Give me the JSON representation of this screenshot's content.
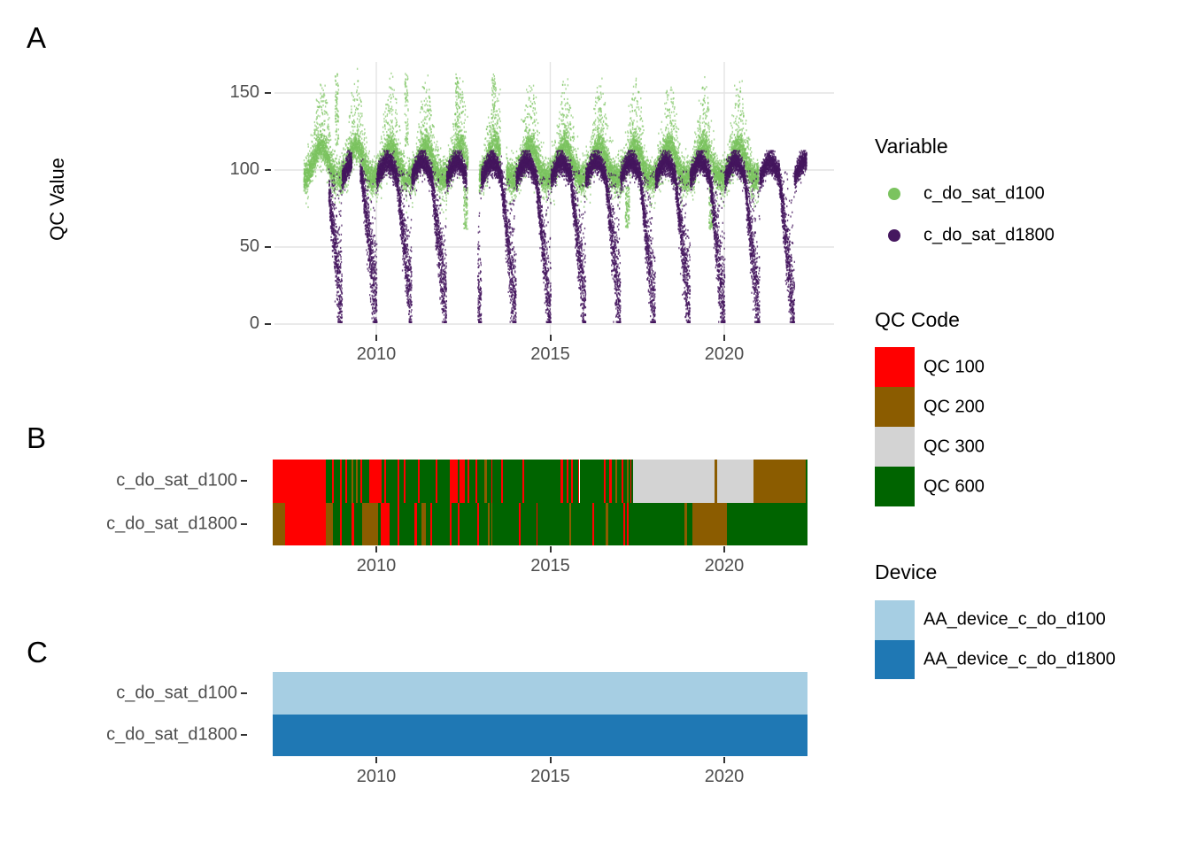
{
  "figure": {
    "background": "#FFFFFF",
    "panels": {
      "A": {
        "label": "A",
        "y_axis_title": "QC Value",
        "x_tick_labels": [
          "2010",
          "2015",
          "2020"
        ],
        "y_tick_labels": [
          "0",
          "50",
          "100",
          "150"
        ]
      },
      "B": {
        "label": "B",
        "row_labels": [
          "c_do_sat_d100",
          "c_do_sat_d1800"
        ],
        "x_tick_labels": [
          "2010",
          "2015",
          "2020"
        ]
      },
      "C": {
        "label": "C",
        "row_labels": [
          "c_do_sat_d100",
          "c_do_sat_d1800"
        ],
        "x_tick_labels": [
          "2010",
          "2015",
          "2020"
        ]
      }
    },
    "legends": {
      "variable": {
        "title": "Variable",
        "items": [
          {
            "label": "c_do_sat_d100",
            "color": "#7BC35F"
          },
          {
            "label": "c_do_sat_d1800",
            "color": "#45175F"
          }
        ]
      },
      "qc_code": {
        "title": "QC Code",
        "items": [
          {
            "label": "QC 100",
            "color": "#FF0000"
          },
          {
            "label": "QC 200",
            "color": "#8B5C00"
          },
          {
            "label": "QC 300",
            "color": "#D3D3D3"
          },
          {
            "label": "QC 600",
            "color": "#006400"
          }
        ]
      },
      "device": {
        "title": "Device",
        "items": [
          {
            "label": "AA_device_c_do_d100",
            "color": "#A6CEE3"
          },
          {
            "label": "AA_device_c_do_d1800",
            "color": "#1F78B4"
          }
        ]
      }
    },
    "style": {
      "gridline_color": "#E3E3E3",
      "axis_text_color": "#4d4d4d",
      "tick_mark_color": "#333333"
    }
  },
  "chart_data": [
    {
      "id": "panelA",
      "type": "scatter",
      "title": "",
      "xlabel": "",
      "ylabel": "QC Value",
      "x_ticks": [
        2010,
        2015,
        2020
      ],
      "y_ticks": [
        0,
        50,
        100,
        150
      ],
      "x_domain": [
        2007.07,
        2023.16
      ],
      "y_domain": [
        -6.9,
        170.1
      ],
      "grid": true,
      "legend_title": "Variable",
      "series": [
        {
          "name": "c_do_sat_d100",
          "color": "#7BC35F",
          "t_range": [
            2007.9,
            2020.97
          ],
          "gaps": [
            [
              2012.62,
              2012.94
            ],
            [
              2013.55,
              2013.72
            ]
          ],
          "baseline": 99,
          "season_peak_phase": 0.42,
          "season_peak_height": 14,
          "season_width": 0.17,
          "noise_sd": 4.5,
          "upper_tail_prob": 0.16,
          "upper_tail_max": 30,
          "lower_tail_prob": 0.05,
          "lower_tail_max": 16,
          "spike_years": [
            2008.85,
            2010.85,
            2012.3,
            2013.35
          ],
          "spike_top": 163,
          "low_dip_years": [
            2012.55,
            2017.2,
            2019.6
          ],
          "low_dip_min": 62,
          "clamp": [
            58,
            167
          ]
        },
        {
          "name": "c_do_sat_d1800",
          "color": "#45175F",
          "t_range": [
            2008.62,
            2022.35
          ],
          "gaps": [
            [
              2009.28,
              2009.52
            ],
            [
              2012.58,
              2012.9
            ]
          ],
          "base": 97,
          "base_amp": 9,
          "dip_start_phase": 0.55,
          "dip_end_phase": 0.97,
          "dip_depth_min": 84,
          "dip_depth_max": 97,
          "noise_sd": 3.5,
          "dip_noise_sd": 13,
          "clamp": [
            2,
            113
          ]
        }
      ]
    },
    {
      "id": "panelB",
      "type": "heatmap",
      "title": "QC Code timeline",
      "x_ticks": [
        2010,
        2015,
        2020
      ],
      "x_range": [
        2007.02,
        2022.39
      ],
      "rows": [
        "c_do_sat_d100",
        "c_do_sat_d1800"
      ],
      "qc_colors": {
        "100": "#FF0000",
        "200": "#8B5C00",
        "300": "#D3D3D3",
        "600": "#006400"
      },
      "segments": {
        "c_do_sat_d100": [
          [
            2007.02,
            2008.55,
            100
          ],
          [
            2008.55,
            2008.72,
            600
          ],
          [
            2008.72,
            2008.78,
            100
          ],
          [
            2008.78,
            2008.95,
            600
          ],
          [
            2008.95,
            2009.0,
            100
          ],
          [
            2009.0,
            2009.12,
            600
          ],
          [
            2009.12,
            2009.16,
            100
          ],
          [
            2009.16,
            2009.28,
            600
          ],
          [
            2009.28,
            2009.33,
            200
          ],
          [
            2009.33,
            2009.42,
            600
          ],
          [
            2009.42,
            2009.46,
            200
          ],
          [
            2009.46,
            2009.55,
            600
          ],
          [
            2009.55,
            2009.6,
            100
          ],
          [
            2009.6,
            2009.8,
            600
          ],
          [
            2009.8,
            2010.15,
            100
          ],
          [
            2010.15,
            2010.22,
            600
          ],
          [
            2010.22,
            2010.28,
            100
          ],
          [
            2010.28,
            2010.6,
            600
          ],
          [
            2010.6,
            2010.65,
            100
          ],
          [
            2010.65,
            2010.8,
            600
          ],
          [
            2010.8,
            2010.84,
            100
          ],
          [
            2010.84,
            2011.2,
            600
          ],
          [
            2011.2,
            2011.25,
            100
          ],
          [
            2011.25,
            2011.7,
            600
          ],
          [
            2011.7,
            2011.76,
            100
          ],
          [
            2011.76,
            2012.1,
            600
          ],
          [
            2012.1,
            2012.35,
            100
          ],
          [
            2012.35,
            2012.4,
            600
          ],
          [
            2012.4,
            2012.55,
            100
          ],
          [
            2012.55,
            2012.62,
            600
          ],
          [
            2012.62,
            2012.66,
            100
          ],
          [
            2012.66,
            2012.85,
            600
          ],
          [
            2012.85,
            2012.9,
            100
          ],
          [
            2012.9,
            2013.1,
            600
          ],
          [
            2013.1,
            2013.18,
            200
          ],
          [
            2013.18,
            2013.3,
            600
          ],
          [
            2013.3,
            2013.34,
            100
          ],
          [
            2013.34,
            2013.6,
            600
          ],
          [
            2013.6,
            2013.65,
            100
          ],
          [
            2013.65,
            2014.2,
            600
          ],
          [
            2014.2,
            2014.24,
            100
          ],
          [
            2014.24,
            2015.3,
            600
          ],
          [
            2015.3,
            2015.38,
            100
          ],
          [
            2015.38,
            2015.48,
            600
          ],
          [
            2015.48,
            2015.52,
            100
          ],
          [
            2015.52,
            2015.6,
            600
          ],
          [
            2015.6,
            2015.66,
            100
          ],
          [
            2015.66,
            2015.8,
            600
          ],
          [
            2015.8,
            2015.84,
            100
          ],
          [
            2015.84,
            2016.55,
            600
          ],
          [
            2016.55,
            2016.6,
            100
          ],
          [
            2016.6,
            2016.7,
            600
          ],
          [
            2016.7,
            2016.76,
            100
          ],
          [
            2016.76,
            2016.86,
            600
          ],
          [
            2016.86,
            2016.92,
            200
          ],
          [
            2016.92,
            2017.05,
            600
          ],
          [
            2017.05,
            2017.1,
            100
          ],
          [
            2017.1,
            2017.2,
            600
          ],
          [
            2017.2,
            2017.25,
            200
          ],
          [
            2017.25,
            2017.3,
            600
          ],
          [
            2017.3,
            2017.34,
            100
          ],
          [
            2017.34,
            2017.38,
            600
          ],
          [
            2017.38,
            2019.72,
            300
          ],
          [
            2019.72,
            2019.8,
            200
          ],
          [
            2019.8,
            2020.84,
            300
          ],
          [
            2020.84,
            2022.35,
            200
          ],
          [
            2022.35,
            2022.39,
            600
          ]
        ],
        "c_do_sat_d1800": [
          [
            2007.02,
            2007.38,
            200
          ],
          [
            2007.38,
            2008.55,
            100
          ],
          [
            2008.55,
            2008.75,
            200
          ],
          [
            2008.75,
            2008.95,
            600
          ],
          [
            2008.95,
            2009.0,
            100
          ],
          [
            2009.0,
            2009.3,
            600
          ],
          [
            2009.3,
            2009.36,
            100
          ],
          [
            2009.36,
            2009.6,
            600
          ],
          [
            2009.6,
            2010.05,
            200
          ],
          [
            2010.05,
            2010.12,
            600
          ],
          [
            2010.12,
            2010.38,
            100
          ],
          [
            2010.38,
            2010.6,
            600
          ],
          [
            2010.6,
            2010.65,
            100
          ],
          [
            2010.65,
            2011.1,
            600
          ],
          [
            2011.1,
            2011.16,
            100
          ],
          [
            2011.16,
            2011.3,
            600
          ],
          [
            2011.3,
            2011.42,
            200
          ],
          [
            2011.42,
            2011.55,
            600
          ],
          [
            2011.55,
            2011.6,
            100
          ],
          [
            2011.6,
            2012.1,
            600
          ],
          [
            2012.1,
            2012.16,
            100
          ],
          [
            2012.16,
            2012.35,
            600
          ],
          [
            2012.35,
            2012.4,
            100
          ],
          [
            2012.4,
            2012.9,
            600
          ],
          [
            2012.9,
            2012.96,
            100
          ],
          [
            2012.96,
            2013.2,
            600
          ],
          [
            2013.2,
            2013.26,
            200
          ],
          [
            2013.26,
            2013.3,
            600
          ],
          [
            2013.3,
            2013.34,
            200
          ],
          [
            2013.34,
            2014.1,
            600
          ],
          [
            2014.1,
            2014.16,
            100
          ],
          [
            2014.16,
            2014.6,
            600
          ],
          [
            2014.6,
            2014.64,
            100
          ],
          [
            2014.64,
            2015.55,
            600
          ],
          [
            2015.55,
            2015.6,
            200
          ],
          [
            2015.6,
            2016.2,
            600
          ],
          [
            2016.2,
            2016.26,
            100
          ],
          [
            2016.26,
            2016.6,
            600
          ],
          [
            2016.6,
            2016.66,
            200
          ],
          [
            2016.66,
            2017.1,
            600
          ],
          [
            2017.1,
            2017.15,
            100
          ],
          [
            2017.15,
            2017.2,
            600
          ],
          [
            2017.2,
            2017.24,
            100
          ],
          [
            2017.24,
            2018.85,
            600
          ],
          [
            2018.85,
            2018.93,
            200
          ],
          [
            2018.93,
            2019.08,
            600
          ],
          [
            2019.08,
            2020.08,
            200
          ],
          [
            2020.08,
            2022.39,
            600
          ]
        ]
      }
    },
    {
      "id": "panelC",
      "type": "heatmap",
      "title": "Device timeline",
      "x_ticks": [
        2010,
        2015,
        2020
      ],
      "x_range": [
        2007.02,
        2022.39
      ],
      "rows": [
        "c_do_sat_d100",
        "c_do_sat_d1800"
      ],
      "device_colors": {
        "AA_device_c_do_d100": "#A6CEE3",
        "AA_device_c_do_d1800": "#1F78B4"
      },
      "segments": {
        "c_do_sat_d100": [
          [
            2007.02,
            2022.39,
            "AA_device_c_do_d100"
          ]
        ],
        "c_do_sat_d1800": [
          [
            2007.02,
            2022.39,
            "AA_device_c_do_d1800"
          ]
        ]
      }
    }
  ]
}
